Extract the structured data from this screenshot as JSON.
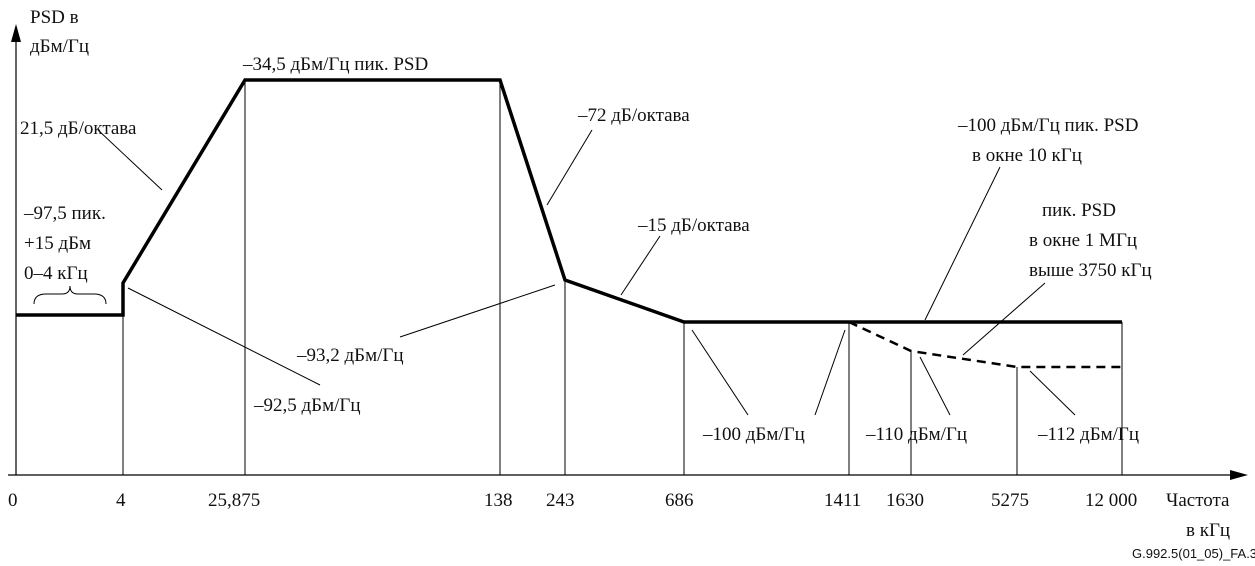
{
  "axes": {
    "y_label_line1": "PSD в",
    "y_label_line2": "дБм/Гц",
    "x_label_line1": "Частота",
    "x_label_line2": "в кГц"
  },
  "x_ticks": [
    "0",
    "4",
    "25,875",
    "138",
    "243",
    "686",
    "1411",
    "1630",
    "5275",
    "12 000"
  ],
  "annotations": {
    "peak_psd": "–34,5 дБм/Гц пик. PSD",
    "slope_up": "21,5 дБ/октава",
    "slope_down_steep": "–72 дБ/октава",
    "slope_down_shallow": "–15 дБ/октава",
    "low_band_line1": "–97,5 пик.",
    "low_band_line2": "+15 дБм",
    "low_band_line3": "0–4 кГц",
    "level_92_5": "–92,5 дБм/Гц",
    "level_93_2": "–93,2 дБм/Гц",
    "level_100": "–100 дБм/Гц",
    "level_110": "–110 дБм/Гц",
    "level_112": "–112 дБм/Гц",
    "peak_10khz_line1": "–100 дБм/Гц пик. PSD",
    "peak_10khz_line2": "в окне 10 кГц",
    "peak_1mhz_line1": "пик. PSD",
    "peak_1mhz_line2": "в окне 1 МГц",
    "peak_1mhz_line3": "выше 3750 кГц"
  },
  "figure_id": "G.992.5(01_05)_FA.3",
  "chart_data": {
    "type": "line",
    "x_unit": "кГц",
    "y_unit": "дБм/Гц",
    "series": [
      {
        "x": [
          0,
          4,
          4,
          25.875,
          138,
          243,
          686,
          1411,
          12000
        ],
        "y": [
          -97.5,
          -97.5,
          -92.5,
          -34.5,
          -34.5,
          -93.2,
          -100,
          -100,
          -100
        ]
      },
      {
        "style": "dashed",
        "x": [
          1411,
          1630,
          5275,
          12000
        ],
        "y": [
          -100,
          -110,
          -112,
          -112
        ]
      }
    ]
  }
}
